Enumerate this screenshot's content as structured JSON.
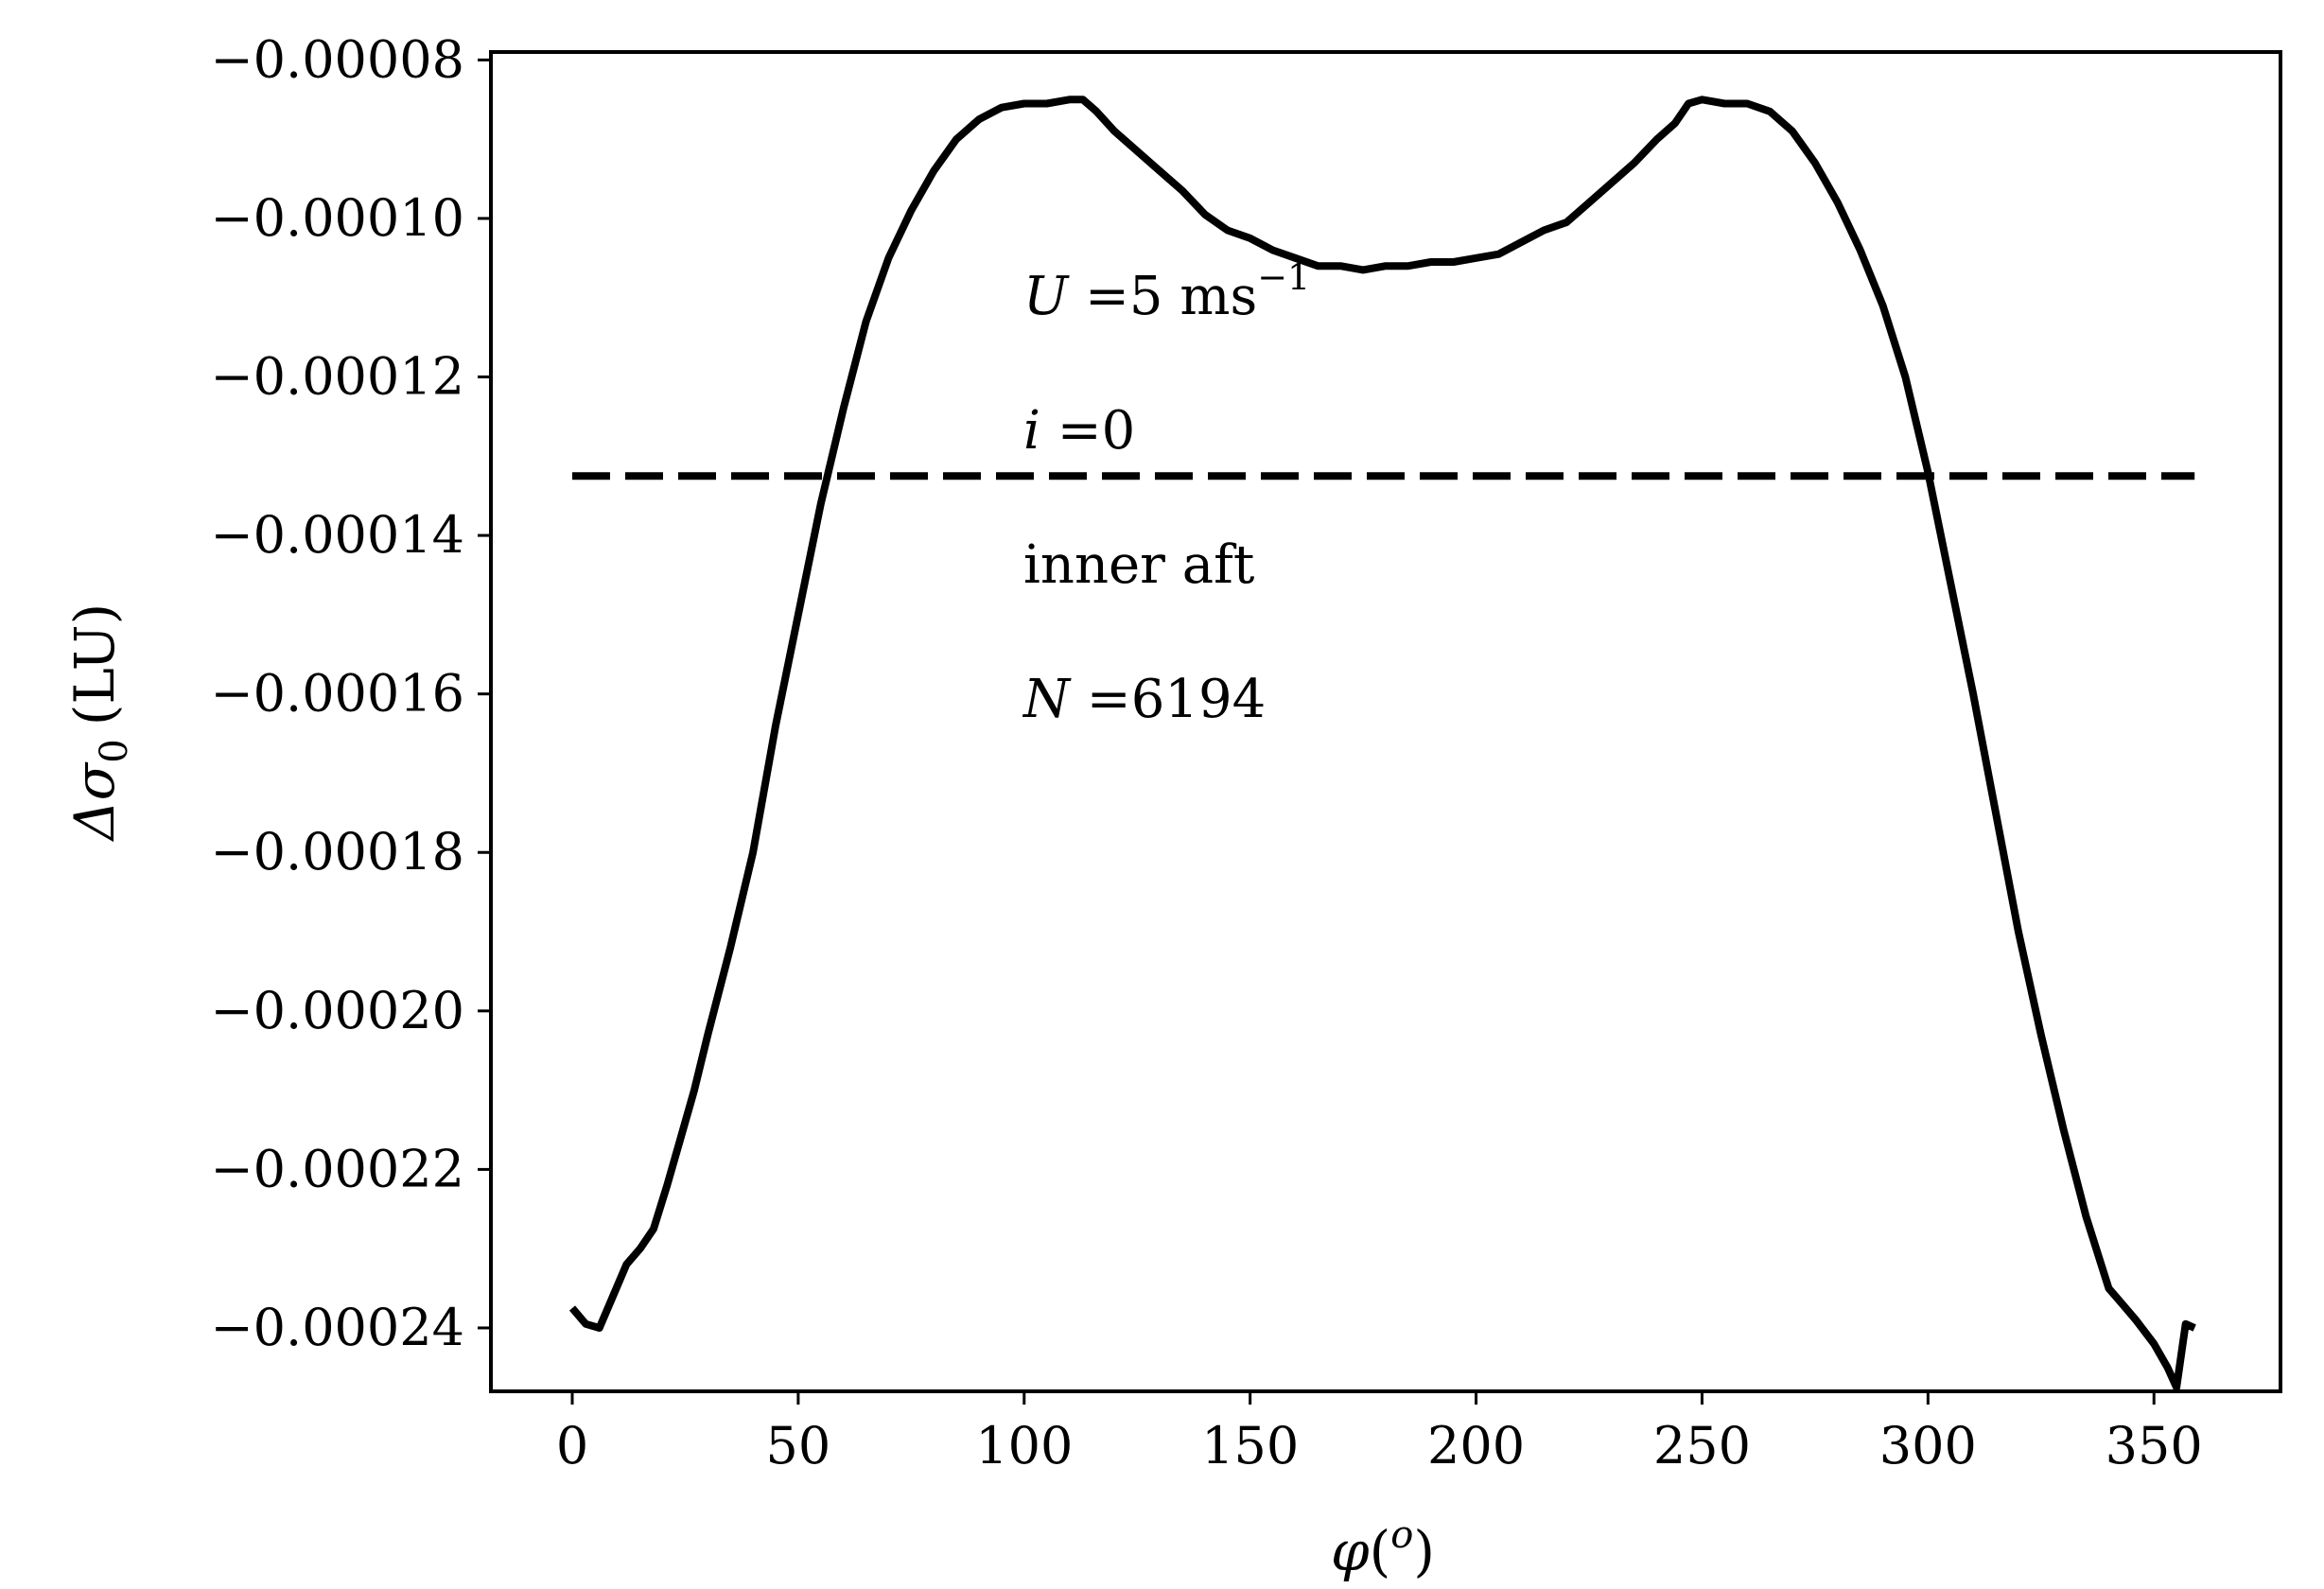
{
  "chart_data": {
    "type": "line",
    "title": "",
    "xlabel": {
      "symbol": "φ",
      "open": "(",
      "sup": "o",
      "close": ")"
    },
    "ylabel": {
      "main": "Δσ",
      "sub": "0",
      "unit": "(LU)"
    },
    "xlim": [
      -18,
      378
    ],
    "ylim": [
      -0.000248,
      -7.9e-05
    ],
    "xticks": [
      0,
      50,
      100,
      150,
      200,
      250,
      300,
      350
    ],
    "xtick_labels": [
      "0",
      "50",
      "100",
      "150",
      "200",
      "250",
      "300",
      "350"
    ],
    "yticks": [
      -8e-05,
      -0.0001,
      -0.00012,
      -0.00014,
      -0.00016,
      -0.00018,
      -0.0002,
      -0.00022,
      -0.00024
    ],
    "ytick_labels": [
      "−0.00008",
      "−0.00010",
      "−0.00012",
      "−0.00014",
      "−0.00016",
      "−0.00018",
      "−0.00020",
      "−0.00022",
      "−0.00024"
    ],
    "grid": false,
    "series": [
      {
        "style": "solid",
        "color": "#000000",
        "x": [
          0,
          3,
          6,
          9,
          12,
          15,
          18,
          21,
          24,
          27,
          30,
          35,
          40,
          45,
          50,
          55,
          60,
          65,
          70,
          75,
          80,
          85,
          90,
          95,
          100,
          105,
          110,
          113,
          116,
          120,
          125,
          130,
          135,
          140,
          145,
          150,
          155,
          160,
          165,
          170,
          175,
          180,
          185,
          190,
          195,
          200,
          205,
          210,
          215,
          220,
          225,
          230,
          235,
          240,
          244,
          247,
          250,
          255,
          260,
          265,
          270,
          275,
          280,
          285,
          290,
          295,
          300,
          305,
          310,
          315,
          320,
          325,
          330,
          335,
          340,
          343,
          346,
          350,
          353,
          355,
          357,
          359
        ],
        "y": [
          -0.0002375,
          -0.0002395,
          -0.00024,
          -0.000236,
          -0.000232,
          -0.00023,
          -0.0002275,
          -0.000222,
          -0.000216,
          -0.00021,
          -0.000203,
          -0.000192,
          -0.00018,
          -0.000164,
          -0.00015,
          -0.000136,
          -0.000124,
          -0.000113,
          -0.000105,
          -9.9e-05,
          -9.4e-05,
          -9e-05,
          -8.75e-05,
          -8.6e-05,
          -8.55e-05,
          -8.55e-05,
          -8.5e-05,
          -8.5e-05,
          -8.65e-05,
          -8.9e-05,
          -9.15e-05,
          -9.4e-05,
          -9.65e-05,
          -9.95e-05,
          -0.0001015,
          -0.0001025,
          -0.000104,
          -0.000105,
          -0.000106,
          -0.000106,
          -0.0001065,
          -0.000106,
          -0.000106,
          -0.0001055,
          -0.0001055,
          -0.000105,
          -0.0001045,
          -0.000103,
          -0.0001015,
          -0.0001005,
          -9.8e-05,
          -9.55e-05,
          -9.3e-05,
          -9e-05,
          -8.8e-05,
          -8.55e-05,
          -8.5e-05,
          -8.55e-05,
          -8.55e-05,
          -8.65e-05,
          -8.9e-05,
          -9.3e-05,
          -9.8e-05,
          -0.000104,
          -0.000111,
          -0.00012,
          -0.000132,
          -0.000146,
          -0.00016,
          -0.000175,
          -0.00019,
          -0.000203,
          -0.000215,
          -0.000226,
          -0.000235,
          -0.000237,
          -0.000239,
          -0.000242,
          -0.000245,
          -0.0002475,
          -0.0002395,
          -0.00024
        ]
      },
      {
        "style": "dashed",
        "color": "#000000",
        "x": [
          0,
          359
        ],
        "y": [
          -0.0001325,
          -0.0001325
        ]
      }
    ],
    "annotations": [
      {
        "prefix_italic": "U",
        "text": " =5 ms",
        "sup": "−1"
      },
      {
        "prefix_italic": "i",
        "text": " =0",
        "sup": ""
      },
      {
        "prefix_italic": "",
        "text": "inner aft",
        "sup": ""
      },
      {
        "prefix_italic": "N",
        "text": " =6194",
        "sup": ""
      }
    ]
  }
}
